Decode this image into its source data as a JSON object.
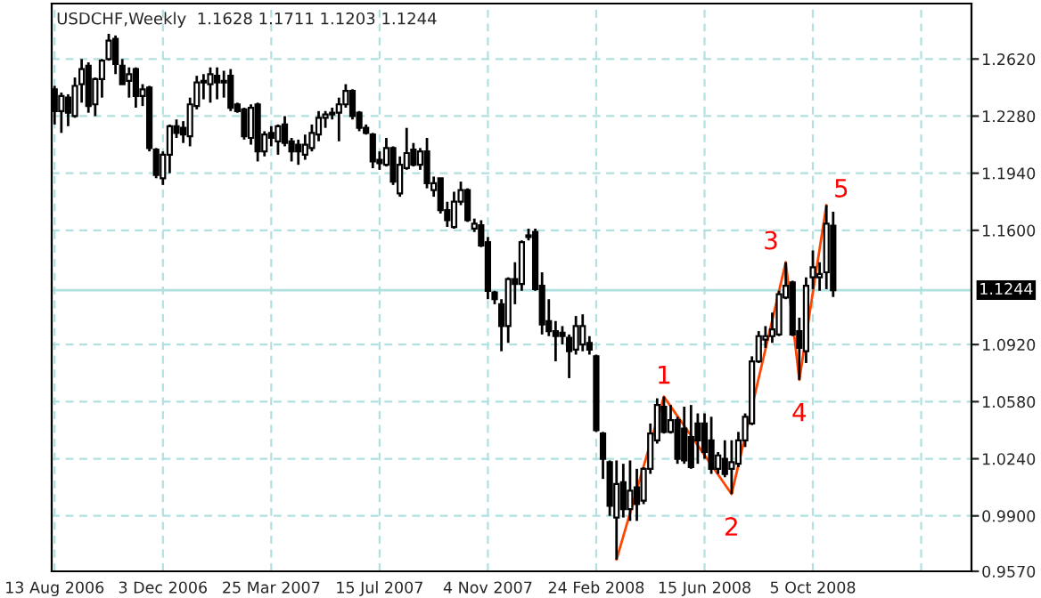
{
  "chart_data": {
    "type": "candlestick",
    "title": "USDCHF,Weekly  1.1628 1.1711 1.1203 1.1244",
    "x": [
      "2006-08-13",
      "2006-08-20",
      "2006-08-27",
      "2006-09-03",
      "2006-09-10",
      "2006-09-17",
      "2006-09-24",
      "2006-10-01",
      "2006-10-08",
      "2006-10-15",
      "2006-10-22",
      "2006-10-29",
      "2006-11-05",
      "2006-11-12",
      "2006-11-19",
      "2006-11-26",
      "2006-12-03",
      "2006-12-10",
      "2006-12-17",
      "2006-12-24",
      "2006-12-31",
      "2007-01-07",
      "2007-01-14",
      "2007-01-21",
      "2007-01-28",
      "2007-02-04",
      "2007-02-11",
      "2007-02-18",
      "2007-02-25",
      "2007-03-04",
      "2007-03-11",
      "2007-03-18",
      "2007-03-25",
      "2007-04-01",
      "2007-04-08",
      "2007-04-15",
      "2007-04-22",
      "2007-04-29",
      "2007-05-06",
      "2007-05-13",
      "2007-05-20",
      "2007-05-27",
      "2007-06-03",
      "2007-06-10",
      "2007-06-17",
      "2007-06-24",
      "2007-07-01",
      "2007-07-08",
      "2007-07-15",
      "2007-07-22",
      "2007-07-29",
      "2007-08-05",
      "2007-08-12",
      "2007-08-19",
      "2007-08-26",
      "2007-09-02",
      "2007-09-09",
      "2007-09-16",
      "2007-09-23",
      "2007-09-30",
      "2007-10-07",
      "2007-10-14",
      "2007-10-21",
      "2007-10-28",
      "2007-11-04",
      "2007-11-11",
      "2007-11-18",
      "2007-11-25",
      "2007-12-02",
      "2007-12-09",
      "2007-12-16",
      "2007-12-23",
      "2007-12-30",
      "2008-01-06",
      "2008-01-13",
      "2008-01-20",
      "2008-01-27",
      "2008-02-03",
      "2008-02-10",
      "2008-02-17",
      "2008-02-24",
      "2008-03-02",
      "2008-03-09",
      "2008-03-16",
      "2008-03-23",
      "2008-03-30",
      "2008-04-06",
      "2008-04-13",
      "2008-04-20",
      "2008-04-27",
      "2008-05-04",
      "2008-05-11",
      "2008-05-18",
      "2008-05-25",
      "2008-06-01",
      "2008-06-08",
      "2008-06-15",
      "2008-06-22",
      "2008-06-29",
      "2008-07-06",
      "2008-07-13",
      "2008-07-20",
      "2008-07-27",
      "2008-08-03",
      "2008-08-10",
      "2008-08-17",
      "2008-08-24",
      "2008-08-31",
      "2008-09-07",
      "2008-09-14",
      "2008-09-21",
      "2008-09-28",
      "2008-10-05",
      "2008-10-12",
      "2008-10-19",
      "2008-10-26"
    ],
    "ohlc": [
      [
        1.244,
        1.246,
        1.223,
        1.231
      ],
      [
        1.231,
        1.242,
        1.218,
        1.24
      ],
      [
        1.239,
        1.241,
        1.222,
        1.23
      ],
      [
        1.228,
        1.251,
        1.227,
        1.246
      ],
      [
        1.247,
        1.262,
        1.236,
        1.256
      ],
      [
        1.258,
        1.26,
        1.23,
        1.234
      ],
      [
        1.235,
        1.251,
        1.228,
        1.25
      ],
      [
        1.25,
        1.262,
        1.239,
        1.261
      ],
      [
        1.262,
        1.277,
        1.261,
        1.273
      ],
      [
        1.274,
        1.276,
        1.253,
        1.259
      ],
      [
        1.258,
        1.262,
        1.247,
        1.247
      ],
      [
        1.249,
        1.257,
        1.239,
        1.253
      ],
      [
        1.256,
        1.257,
        1.233,
        1.24
      ],
      [
        1.24,
        1.247,
        1.234,
        1.244
      ],
      [
        1.245,
        1.246,
        1.207,
        1.209
      ],
      [
        1.208,
        1.209,
        1.191,
        1.193
      ],
      [
        1.191,
        1.207,
        1.187,
        1.205
      ],
      [
        1.205,
        1.223,
        1.194,
        1.222
      ],
      [
        1.222,
        1.226,
        1.215,
        1.218
      ],
      [
        1.221,
        1.225,
        1.212,
        1.217
      ],
      [
        1.216,
        1.239,
        1.21,
        1.235
      ],
      [
        1.234,
        1.252,
        1.232,
        1.248
      ],
      [
        1.248,
        1.253,
        1.238,
        1.249
      ],
      [
        1.247,
        1.257,
        1.236,
        1.253
      ],
      [
        1.252,
        1.257,
        1.238,
        1.248
      ],
      [
        1.249,
        1.255,
        1.239,
        1.248
      ],
      [
        1.252,
        1.256,
        1.231,
        1.233
      ],
      [
        1.235,
        1.236,
        1.23,
        1.231
      ],
      [
        1.232,
        1.233,
        1.214,
        1.216
      ],
      [
        1.215,
        1.235,
        1.211,
        1.233
      ],
      [
        1.235,
        1.236,
        1.201,
        1.207
      ],
      [
        1.207,
        1.219,
        1.204,
        1.217
      ],
      [
        1.218,
        1.222,
        1.21,
        1.215
      ],
      [
        1.213,
        1.223,
        1.205,
        1.222
      ],
      [
        1.223,
        1.228,
        1.21,
        1.212
      ],
      [
        1.213,
        1.215,
        1.201,
        1.207
      ],
      [
        1.211,
        1.214,
        1.199,
        1.207
      ],
      [
        1.205,
        1.217,
        1.202,
        1.211
      ],
      [
        1.209,
        1.223,
        1.207,
        1.218
      ],
      [
        1.217,
        1.231,
        1.213,
        1.227
      ],
      [
        1.227,
        1.231,
        1.221,
        1.229
      ],
      [
        1.229,
        1.233,
        1.226,
        1.23
      ],
      [
        1.23,
        1.239,
        1.213,
        1.235
      ],
      [
        1.235,
        1.247,
        1.233,
        1.243
      ],
      [
        1.243,
        1.244,
        1.226,
        1.228
      ],
      [
        1.23,
        1.231,
        1.219,
        1.221
      ],
      [
        1.221,
        1.223,
        1.217,
        1.218
      ],
      [
        1.217,
        1.218,
        1.197,
        1.201
      ],
      [
        1.202,
        1.207,
        1.196,
        1.2
      ],
      [
        1.199,
        1.215,
        1.198,
        1.209
      ],
      [
        1.209,
        1.21,
        1.187,
        1.189
      ],
      [
        1.182,
        1.204,
        1.18,
        1.199
      ],
      [
        1.197,
        1.221,
        1.196,
        1.206
      ],
      [
        1.208,
        1.212,
        1.198,
        1.199
      ],
      [
        1.199,
        1.209,
        1.196,
        1.207
      ],
      [
        1.207,
        1.215,
        1.185,
        1.188
      ],
      [
        1.184,
        1.192,
        1.18,
        1.188
      ],
      [
        1.191,
        1.191,
        1.17,
        1.172
      ],
      [
        1.172,
        1.177,
        1.162,
        1.166
      ],
      [
        1.162,
        1.183,
        1.161,
        1.177
      ],
      [
        1.177,
        1.189,
        1.175,
        1.184
      ],
      [
        1.184,
        1.185,
        1.165,
        1.166
      ],
      [
        1.161,
        1.167,
        1.159,
        1.164
      ],
      [
        1.163,
        1.166,
        1.15,
        1.151
      ],
      [
        1.153,
        1.156,
        1.119,
        1.124
      ],
      [
        1.123,
        1.124,
        1.116,
        1.119
      ],
      [
        1.116,
        1.119,
        1.088,
        1.103
      ],
      [
        1.103,
        1.132,
        1.093,
        1.131
      ],
      [
        1.131,
        1.141,
        1.116,
        1.128
      ],
      [
        1.128,
        1.154,
        1.124,
        1.153
      ],
      [
        1.156,
        1.161,
        1.154,
        1.157
      ],
      [
        1.159,
        1.161,
        1.124,
        1.125
      ],
      [
        1.127,
        1.135,
        1.098,
        1.104
      ],
      [
        1.106,
        1.119,
        1.097,
        1.1
      ],
      [
        1.1,
        1.106,
        1.082,
        1.097
      ],
      [
        1.099,
        1.103,
        1.092,
        1.097
      ],
      [
        1.096,
        1.098,
        1.072,
        1.088
      ],
      [
        1.089,
        1.109,
        1.086,
        1.103
      ],
      [
        1.092,
        1.11,
        1.088,
        1.103
      ],
      [
        1.093,
        1.097,
        1.086,
        1.089
      ],
      [
        1.085,
        1.086,
        1.04,
        1.041
      ],
      [
        1.039,
        1.04,
        1.012,
        1.024
      ],
      [
        1.022,
        1.023,
        0.99,
        0.996
      ],
      [
        0.989,
        1.023,
        0.964,
        1.009
      ],
      [
        1.01,
        1.021,
        0.989,
        0.994
      ],
      [
        0.994,
        1.023,
        0.987,
        1.005
      ],
      [
        1.007,
        1.018,
        0.987,
        0.997
      ],
      [
        0.999,
        1.019,
        0.997,
        1.018
      ],
      [
        1.018,
        1.045,
        1.015,
        1.039
      ],
      [
        1.035,
        1.06,
        1.033,
        1.056
      ],
      [
        1.055,
        1.061,
        1.039,
        1.04
      ],
      [
        1.04,
        1.056,
        1.039,
        1.047
      ],
      [
        1.047,
        1.049,
        1.021,
        1.024
      ],
      [
        1.042,
        1.055,
        1.021,
        1.023
      ],
      [
        1.037,
        1.056,
        1.018,
        1.019
      ],
      [
        1.045,
        1.051,
        1.021,
        1.035
      ],
      [
        1.045,
        1.051,
        1.024,
        1.028
      ],
      [
        1.035,
        1.049,
        1.015,
        1.018
      ],
      [
        1.018,
        1.028,
        1.015,
        1.026
      ],
      [
        1.024,
        1.035,
        1.013,
        1.015
      ],
      [
        1.018,
        1.035,
        1.003,
        1.022
      ],
      [
        1.021,
        1.04,
        1.019,
        1.035
      ],
      [
        1.035,
        1.051,
        1.031,
        1.049
      ],
      [
        1.045,
        1.085,
        1.044,
        1.082
      ],
      [
        1.082,
        1.1,
        1.081,
        1.097
      ],
      [
        1.095,
        1.103,
        1.09,
        1.097
      ],
      [
        1.097,
        1.111,
        1.093,
        1.101
      ],
      [
        1.098,
        1.124,
        1.097,
        1.122
      ],
      [
        1.12,
        1.141,
        1.119,
        1.127
      ],
      [
        1.129,
        1.13,
        1.097,
        1.098
      ],
      [
        1.1,
        1.108,
        1.071,
        1.09
      ],
      [
        1.088,
        1.132,
        1.081,
        1.127
      ],
      [
        1.132,
        1.148,
        1.125,
        1.138
      ],
      [
        1.132,
        1.141,
        1.124,
        1.134
      ],
      [
        1.135,
        1.175,
        1.125,
        1.164
      ],
      [
        1.1628,
        1.1711,
        1.1203,
        1.1244
      ]
    ],
    "series": [
      {
        "type": "line",
        "color": "#ff4500",
        "x": [
          "2008-03-16",
          "2008-05-04",
          "2008-07-13",
          "2008-09-07",
          "2008-09-21",
          "2008-10-19"
        ],
        "values": [
          0.964,
          1.061,
          1.003,
          1.141,
          1.071,
          1.175
        ]
      }
    ],
    "annotations": [
      {
        "text": "1",
        "x": "2008-05-04",
        "y": 1.061
      },
      {
        "text": "2",
        "x": "2008-07-13",
        "y": 1.003
      },
      {
        "text": "3",
        "x": "2008-09-07",
        "y": 1.141
      },
      {
        "text": "4",
        "x": "2008-09-21",
        "y": 1.071
      },
      {
        "text": "5",
        "x": "2008-10-19",
        "y": 1.175
      }
    ],
    "ref_lines": [
      {
        "axis": "y",
        "value": 1.1244,
        "label": "1.1244",
        "color": "#b0e0e0"
      }
    ],
    "xlim": [
      "2006-08-10",
      "2009-03-18"
    ],
    "xticks": [
      {
        "value": "2006-08-13",
        "label": "13 Aug 2006"
      },
      {
        "value": "2006-12-03",
        "label": "3 Dec 2006"
      },
      {
        "value": "2007-03-25",
        "label": "25 Mar 2007"
      },
      {
        "value": "2007-07-15",
        "label": "15 Jul 2007"
      },
      {
        "value": "2007-11-04",
        "label": "4 Nov 2007"
      },
      {
        "value": "2008-02-24",
        "label": "24 Feb 2008"
      },
      {
        "value": "2008-06-15",
        "label": "15 Jun 2008"
      },
      {
        "value": "2008-10-05",
        "label": "5 Oct 2008"
      },
      {
        "value": "2009-01-25",
        "label": null
      }
    ],
    "ylim": [
      0.957,
      1.295
    ],
    "yticks": [
      {
        "value": 0.957,
        "label": "0.9570"
      },
      {
        "value": 0.99,
        "label": "0.9900"
      },
      {
        "value": 1.024,
        "label": "1.0240"
      },
      {
        "value": 1.058,
        "label": "1.0580"
      },
      {
        "value": 1.092,
        "label": "1.0920"
      },
      {
        "value": 1.16,
        "label": "1.1600"
      },
      {
        "value": 1.194,
        "label": "1.1940"
      },
      {
        "value": 1.228,
        "label": "1.2280"
      },
      {
        "value": 1.262,
        "label": "1.2620"
      }
    ],
    "grid": true
  }
}
